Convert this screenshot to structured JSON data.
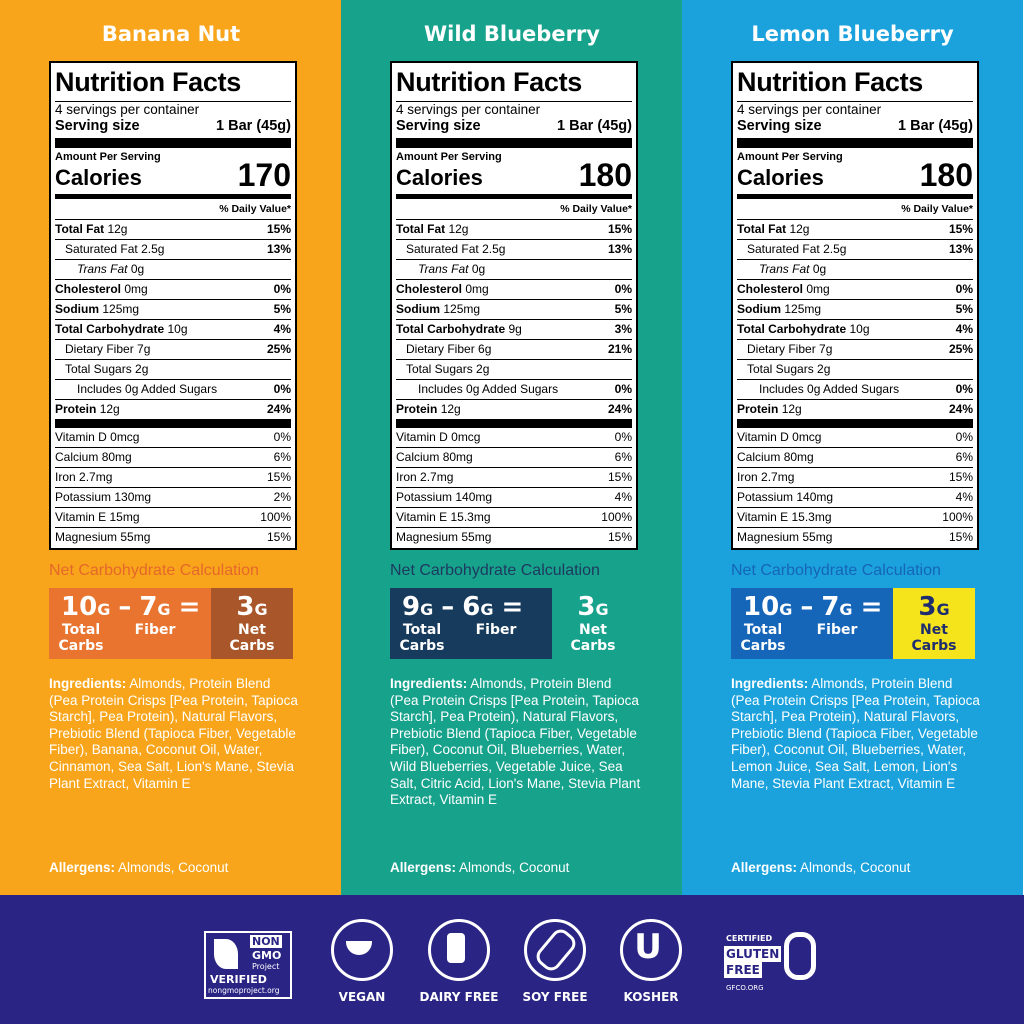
{
  "label": {
    "title": "Nutrition Facts",
    "servings": "4 servings per container",
    "serving_size_label": "Serving size",
    "serving_size": "1 Bar (45g)",
    "amount_per_serving": "Amount Per Serving",
    "calories_label": "Calories",
    "daily_value": "% Daily Value*",
    "nutrients": [
      "Total Fat",
      "Saturated Fat",
      "Trans Fat",
      "Cholesterol",
      "Sodium",
      "Total Carbohydrate",
      "Dietary Fiber",
      "Total Sugars",
      "Includes 0g Added Sugars",
      "Protein"
    ],
    "vitamins": [
      "Vitamin D",
      "Calcium",
      "Iron",
      "Potassium",
      "Vitamin E",
      "Magnesium"
    ],
    "net_carb_title": "Net Carbohydrate Calculation",
    "minus": "–",
    "equals": "=",
    "carb_unit": "G",
    "total_carbs_label": "Total Carbs",
    "fiber_label": "Fiber",
    "net_carbs_label": "Net Carbs",
    "ingredients_label": "Ingredients:",
    "allergens_label": "Allergens:"
  },
  "products": [
    {
      "name": "Banana Nut",
      "calories": "170",
      "nutrients": [
        {
          "amount": "12g",
          "dv": "15%"
        },
        {
          "amount": "2.5g",
          "dv": "13%"
        },
        {
          "amount": "0g",
          "dv": null
        },
        {
          "amount": "0mg",
          "dv": "0%"
        },
        {
          "amount": "125mg",
          "dv": "5%"
        },
        {
          "amount": "10g",
          "dv": "4%"
        },
        {
          "amount": "7g",
          "dv": "25%"
        },
        {
          "amount": "2g",
          "dv": null
        },
        {
          "amount": null,
          "dv": "0%"
        },
        {
          "amount": "12g",
          "dv": "24%"
        }
      ],
      "vitamins": [
        {
          "amount": "0mcg",
          "dv": "0%"
        },
        {
          "amount": "80mg",
          "dv": "6%"
        },
        {
          "amount": "2.7mg",
          "dv": "15%"
        },
        {
          "amount": "130mg",
          "dv": "2%"
        },
        {
          "amount": "15mg",
          "dv": "100%"
        },
        {
          "amount": "55mg",
          "dv": "15%"
        }
      ],
      "net": {
        "total": "10",
        "fiber": "7",
        "net": "3"
      },
      "ingredients": "Almonds, Protein Blend (Pea Protein Crisps [Pea Protein, Tapioca Starch], Pea Protein), Natural Flavors, Prebiotic Blend (Tapioca Fiber, Vegetable Fiber), Banana, Coconut Oil, Water, Cinnamon, Sea Salt, Lion's Mane, Stevia Plant Extract, Vitamin E",
      "allergens": "Almonds, Coconut"
    },
    {
      "name": "Wild Blueberry",
      "calories": "180",
      "nutrients": [
        {
          "amount": "12g",
          "dv": "15%"
        },
        {
          "amount": "2.5g",
          "dv": "13%"
        },
        {
          "amount": "0g",
          "dv": null
        },
        {
          "amount": "0mg",
          "dv": "0%"
        },
        {
          "amount": "125mg",
          "dv": "5%"
        },
        {
          "amount": "9g",
          "dv": "3%"
        },
        {
          "amount": "6g",
          "dv": "21%"
        },
        {
          "amount": "2g",
          "dv": null
        },
        {
          "amount": null,
          "dv": "0%"
        },
        {
          "amount": "12g",
          "dv": "24%"
        }
      ],
      "vitamins": [
        {
          "amount": "0mcg",
          "dv": "0%"
        },
        {
          "amount": "80mg",
          "dv": "6%"
        },
        {
          "amount": "2.7mg",
          "dv": "15%"
        },
        {
          "amount": "140mg",
          "dv": "4%"
        },
        {
          "amount": "15.3mg",
          "dv": "100%"
        },
        {
          "amount": "55mg",
          "dv": "15%"
        }
      ],
      "net": {
        "total": "9",
        "fiber": "6",
        "net": "3"
      },
      "ingredients": "Almonds, Protein Blend (Pea Protein Crisps [Pea Protein, Tapioca Starch], Pea Protein), Natural Flavors, Prebiotic Blend (Tapioca Fiber, Vegetable Fiber), Coconut Oil, Blueberries, Water, Wild Blueberries, Vegetable Juice, Sea Salt, Citric Acid, Lion's Mane, Stevia Plant Extract, Vitamin E",
      "allergens": "Almonds, Coconut"
    },
    {
      "name": "Lemon Blueberry",
      "calories": "180",
      "nutrients": [
        {
          "amount": "12g",
          "dv": "15%"
        },
        {
          "amount": "2.5g",
          "dv": "13%"
        },
        {
          "amount": "0g",
          "dv": null
        },
        {
          "amount": "0mg",
          "dv": "0%"
        },
        {
          "amount": "125mg",
          "dv": "5%"
        },
        {
          "amount": "10g",
          "dv": "4%"
        },
        {
          "amount": "7g",
          "dv": "25%"
        },
        {
          "amount": "2g",
          "dv": null
        },
        {
          "amount": null,
          "dv": "0%"
        },
        {
          "amount": "12g",
          "dv": "24%"
        }
      ],
      "vitamins": [
        {
          "amount": "0mcg",
          "dv": "0%"
        },
        {
          "amount": "80mg",
          "dv": "6%"
        },
        {
          "amount": "2.7mg",
          "dv": "15%"
        },
        {
          "amount": "140mg",
          "dv": "4%"
        },
        {
          "amount": "15.3mg",
          "dv": "100%"
        },
        {
          "amount": "55mg",
          "dv": "15%"
        }
      ],
      "net": {
        "total": "10",
        "fiber": "7",
        "net": "3"
      },
      "ingredients": "Almonds, Protein Blend (Pea Protein Crisps [Pea Protein, Tapioca Starch], Pea Protein), Natural Flavors, Prebiotic Blend (Tapioca Fiber, Vegetable Fiber), Coconut Oil, Blueberries, Water, Lemon Juice, Sea Salt, Lemon, Lion's Mane, Stevia Plant Extract, Vitamin E",
      "allergens": "Almonds, Coconut"
    }
  ],
  "badges": {
    "nongmo": {
      "line1": "NON",
      "line2": "GMO",
      "line3": "Project",
      "line4": "VERIFIED",
      "site": "nongmoproject.org"
    },
    "icons": [
      "VEGAN",
      "DAIRY FREE",
      "SOY FREE",
      "KOSHER"
    ],
    "kosher_mark": "U",
    "gluten": {
      "certified": "CERTIFIED",
      "line1": "GLUTEN",
      "line2": "FREE",
      "site": "GFCO.ORG"
    }
  }
}
